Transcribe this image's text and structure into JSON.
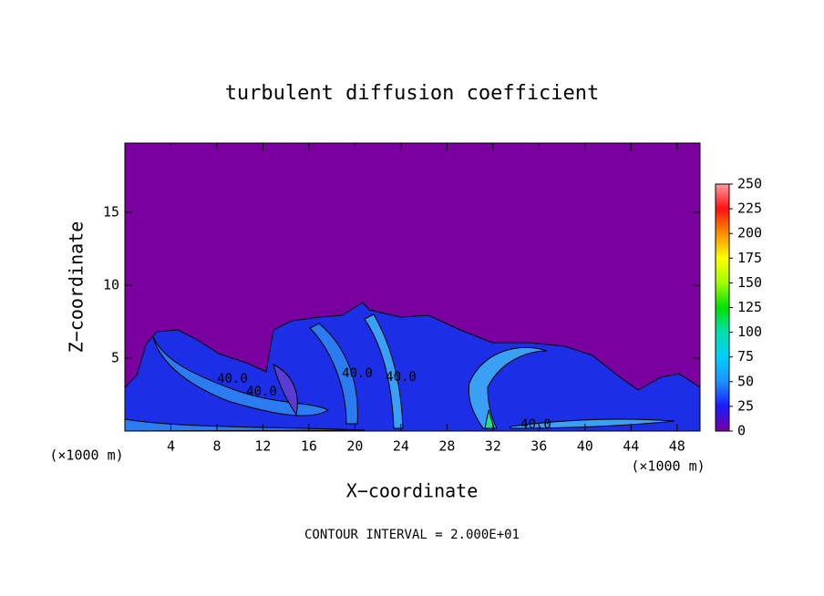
{
  "chart_data": {
    "type": "contour",
    "title": "turbulent diffusion coefficient",
    "x_label": "X−coordinate",
    "y_label": "Z−coordinate",
    "x_unit": "(×1000 m)",
    "y_unit": "(×1000 m)",
    "footnote": "CONTOUR INTERVAL = 2.000E+01",
    "xlim": [
      0,
      50
    ],
    "xticks": [
      4,
      8,
      12,
      16,
      20,
      24,
      28,
      32,
      36,
      40,
      44,
      48
    ],
    "ylim": [
      0,
      19.75
    ],
    "yticks": [
      5,
      10,
      15
    ],
    "contour_labels": [
      "40.0",
      "40.0",
      "40.0",
      "40.0",
      "40.0"
    ],
    "colorbar": {
      "lim": [
        0,
        250
      ],
      "ticks": [
        0,
        25,
        50,
        75,
        100,
        125,
        150,
        175,
        200,
        225,
        250
      ],
      "colors": [
        "#7a00a0",
        "#1a1aff",
        "#1e90ff",
        "#00d0ff",
        "#00e0b0",
        "#00e000",
        "#a0ff00",
        "#ffff00",
        "#ff9000",
        "#ff1010",
        "#ff9aa0"
      ]
    }
  }
}
